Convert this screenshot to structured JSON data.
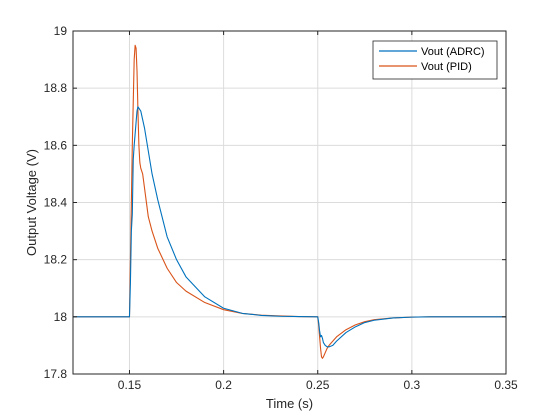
{
  "chart_data": {
    "type": "line",
    "title": "",
    "xlabel": "Time (s)",
    "ylabel": "Output Voltage (V)",
    "xlim": [
      0.12,
      0.35
    ],
    "ylim": [
      17.8,
      19
    ],
    "xticks": [
      0.15,
      0.2,
      0.25,
      0.3,
      0.35
    ],
    "xtick_labels": [
      "0.15",
      "0.2",
      "0.25",
      "0.3",
      "0.35"
    ],
    "yticks": [
      17.8,
      18,
      18.2,
      18.4,
      18.6,
      18.8,
      19
    ],
    "ytick_labels": [
      "17.8",
      "18",
      "18.2",
      "18.4",
      "18.6",
      "18.8",
      "19"
    ],
    "grid": true,
    "legend_position": "top-right",
    "series": [
      {
        "name": "Vout (ADRC)",
        "color": "#0072BD",
        "x": [
          0.12,
          0.15,
          0.1505,
          0.151,
          0.1515,
          0.152,
          0.1525,
          0.153,
          0.1535,
          0.154,
          0.1545,
          0.155,
          0.156,
          0.157,
          0.158,
          0.16,
          0.162,
          0.165,
          0.17,
          0.175,
          0.18,
          0.19,
          0.2,
          0.21,
          0.22,
          0.23,
          0.24,
          0.25,
          0.2505,
          0.251,
          0.2515,
          0.252,
          0.2525,
          0.253,
          0.254,
          0.255,
          0.256,
          0.258,
          0.26,
          0.265,
          0.27,
          0.275,
          0.28,
          0.29,
          0.3,
          0.31,
          0.32,
          0.33,
          0.34,
          0.35
        ],
        "y": [
          18.0,
          18.0,
          18.12,
          18.3,
          18.36,
          18.55,
          18.6,
          18.64,
          18.68,
          18.72,
          18.735,
          18.73,
          18.72,
          18.69,
          18.66,
          18.58,
          18.5,
          18.41,
          18.28,
          18.2,
          18.14,
          18.07,
          18.03,
          18.012,
          18.005,
          18.002,
          18.001,
          18.0,
          17.98,
          17.95,
          17.93,
          17.935,
          17.925,
          17.91,
          17.9,
          17.895,
          17.895,
          17.9,
          17.915,
          17.945,
          17.965,
          17.98,
          17.988,
          17.996,
          17.999,
          18.0,
          18.0,
          18.0,
          18.0,
          18.0
        ]
      },
      {
        "name": "Vout (PID)",
        "color": "#D95319",
        "x": [
          0.12,
          0.15,
          0.1505,
          0.151,
          0.1515,
          0.152,
          0.1525,
          0.153,
          0.1535,
          0.154,
          0.1545,
          0.155,
          0.1555,
          0.156,
          0.157,
          0.158,
          0.159,
          0.16,
          0.162,
          0.165,
          0.17,
          0.175,
          0.18,
          0.19,
          0.2,
          0.21,
          0.22,
          0.23,
          0.24,
          0.25,
          0.2505,
          0.251,
          0.2515,
          0.252,
          0.2525,
          0.253,
          0.254,
          0.255,
          0.256,
          0.258,
          0.26,
          0.265,
          0.27,
          0.275,
          0.28,
          0.29,
          0.3,
          0.31,
          0.32,
          0.33,
          0.34,
          0.35
        ],
        "y": [
          18.0,
          18.0,
          18.2,
          18.4,
          18.6,
          18.75,
          18.9,
          18.95,
          18.94,
          18.86,
          18.72,
          18.6,
          18.54,
          18.52,
          18.5,
          18.45,
          18.4,
          18.35,
          18.3,
          18.24,
          18.17,
          18.12,
          18.09,
          18.05,
          18.025,
          18.012,
          18.006,
          18.003,
          18.001,
          18.0,
          17.97,
          17.93,
          17.89,
          17.86,
          17.855,
          17.86,
          17.875,
          17.89,
          17.9,
          17.915,
          17.93,
          17.955,
          17.972,
          17.983,
          17.99,
          17.996,
          17.999,
          18.0,
          18.0,
          18.0,
          18.0,
          18.0
        ]
      }
    ]
  }
}
